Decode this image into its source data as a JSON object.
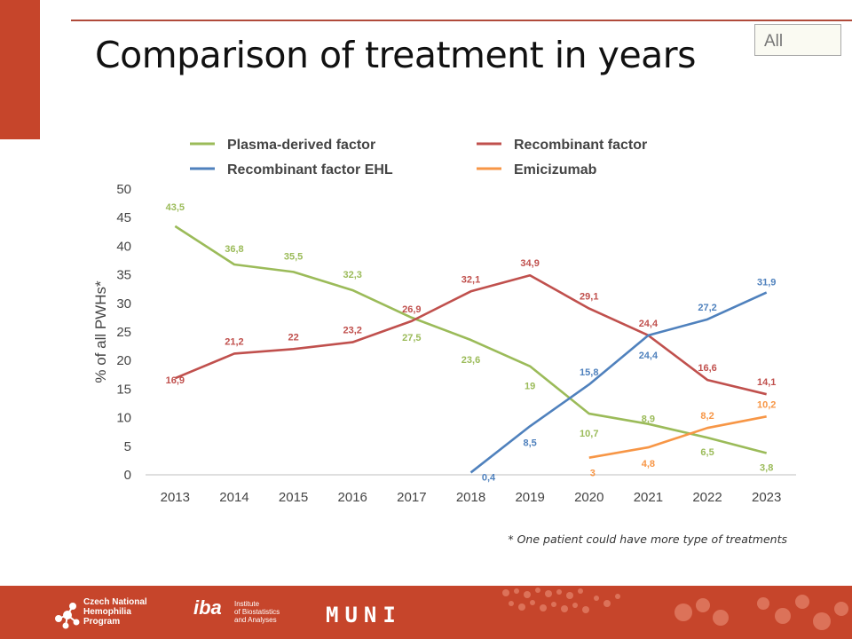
{
  "page": {
    "title": "Comparison of treatment in years",
    "tag": "All",
    "footnote": "* One patient could have more type of treatments"
  },
  "footer": {
    "org_line1": "Czech National",
    "org_line2": "Hemophilia",
    "org_line3": "Program",
    "iba_mark": "iba",
    "iba_line1": "Institute",
    "iba_line2": "of Biostatistics",
    "iba_line3": "and Analyses",
    "muni": "MUNI",
    "background": "#c6452b"
  },
  "chart_data": {
    "type": "line",
    "ylabel": "% of all PWHs*",
    "ylim": [
      0,
      50
    ],
    "yticks": [
      0,
      5,
      10,
      15,
      20,
      25,
      30,
      35,
      40,
      45,
      50
    ],
    "categories": [
      "2013",
      "2014",
      "2015",
      "2016",
      "2017",
      "2018",
      "2019",
      "2020",
      "2021",
      "2022",
      "2023"
    ],
    "legend_position": "top",
    "grid": false,
    "series": [
      {
        "name": "Plasma-derived factor",
        "color": "#9bbb59",
        "values": [
          43.5,
          36.8,
          35.5,
          32.3,
          27.5,
          23.6,
          19,
          10.7,
          8.9,
          6.5,
          3.8
        ],
        "labels": [
          "43,5",
          "36,8",
          "35,5",
          "32,3",
          "27,5",
          "23,6",
          "19",
          "10,7",
          "8,9",
          "6,5",
          "3,8"
        ]
      },
      {
        "name": "Recombinant factor",
        "color": "#c0504d",
        "values": [
          16.9,
          21.2,
          22,
          23.2,
          26.9,
          32.1,
          34.9,
          29.1,
          24.4,
          16.6,
          14.1
        ],
        "labels": [
          "16,9",
          "21,2",
          "22",
          "23,2",
          "26,9",
          "32,1",
          "34,9",
          "29,1",
          "24,4",
          "16,6",
          "14,1"
        ]
      },
      {
        "name": "Recombinant factor EHL",
        "color": "#4f81bd",
        "values": [
          null,
          null,
          null,
          null,
          null,
          0.4,
          8.5,
          15.8,
          24.4,
          27.2,
          31.9
        ],
        "labels": [
          null,
          null,
          null,
          null,
          null,
          "0,4",
          "8,5",
          "15,8",
          "24,4",
          "27,2",
          "31,9"
        ]
      },
      {
        "name": "Emicizumab",
        "color": "#f79646",
        "values": [
          null,
          null,
          null,
          null,
          null,
          null,
          null,
          3,
          4.8,
          8.2,
          10.2
        ],
        "labels": [
          null,
          null,
          null,
          null,
          null,
          null,
          null,
          "3",
          "4,8",
          "8,2",
          "10,2"
        ]
      }
    ]
  }
}
